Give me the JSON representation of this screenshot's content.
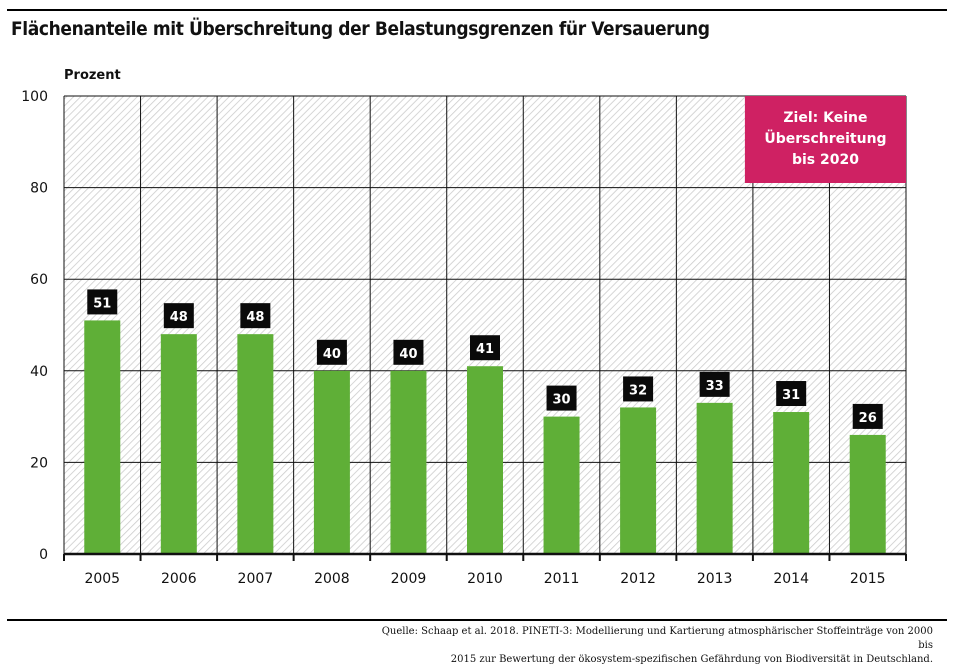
{
  "chart_data": {
    "type": "bar",
    "title": "Flächenanteile mit Überschreitung der Belastungsgrenzen für Versauerung",
    "ylabel": "Prozent",
    "xlabel": "",
    "ylim": [
      0,
      100
    ],
    "yticks": [
      0,
      20,
      40,
      60,
      80,
      100
    ],
    "grid": true,
    "categories": [
      "2005",
      "2006",
      "2007",
      "2008",
      "2009",
      "2010",
      "2011",
      "2012",
      "2013",
      "2014",
      "2015"
    ],
    "values": [
      51,
      48,
      48,
      40,
      40,
      41,
      30,
      32,
      33,
      31,
      26
    ],
    "data_labels": [
      "51",
      "48",
      "48",
      "40",
      "40",
      "41",
      "30",
      "32",
      "33",
      "31",
      "26"
    ],
    "annotation": {
      "lines": [
        "Ziel: Keine",
        "Überschreitung",
        "bis 2020"
      ],
      "position": "top-right"
    },
    "colors": {
      "bar": "#5faf37",
      "label_bg": "#0a0a0a",
      "label_text": "#ffffff",
      "annotation_bg": "#cf2163",
      "hatch": "#d0d0d0"
    }
  },
  "source": {
    "line1": "Quelle: Schaap et al. 2018. PINETI-3: Modellierung und Kartierung atmosphärischer Stoffeinträge von 2000 bis",
    "line2": "2015 zur Bewertung der ökosystem-spezifischen Gefährdung von Biodiversität in Deutschland."
  }
}
